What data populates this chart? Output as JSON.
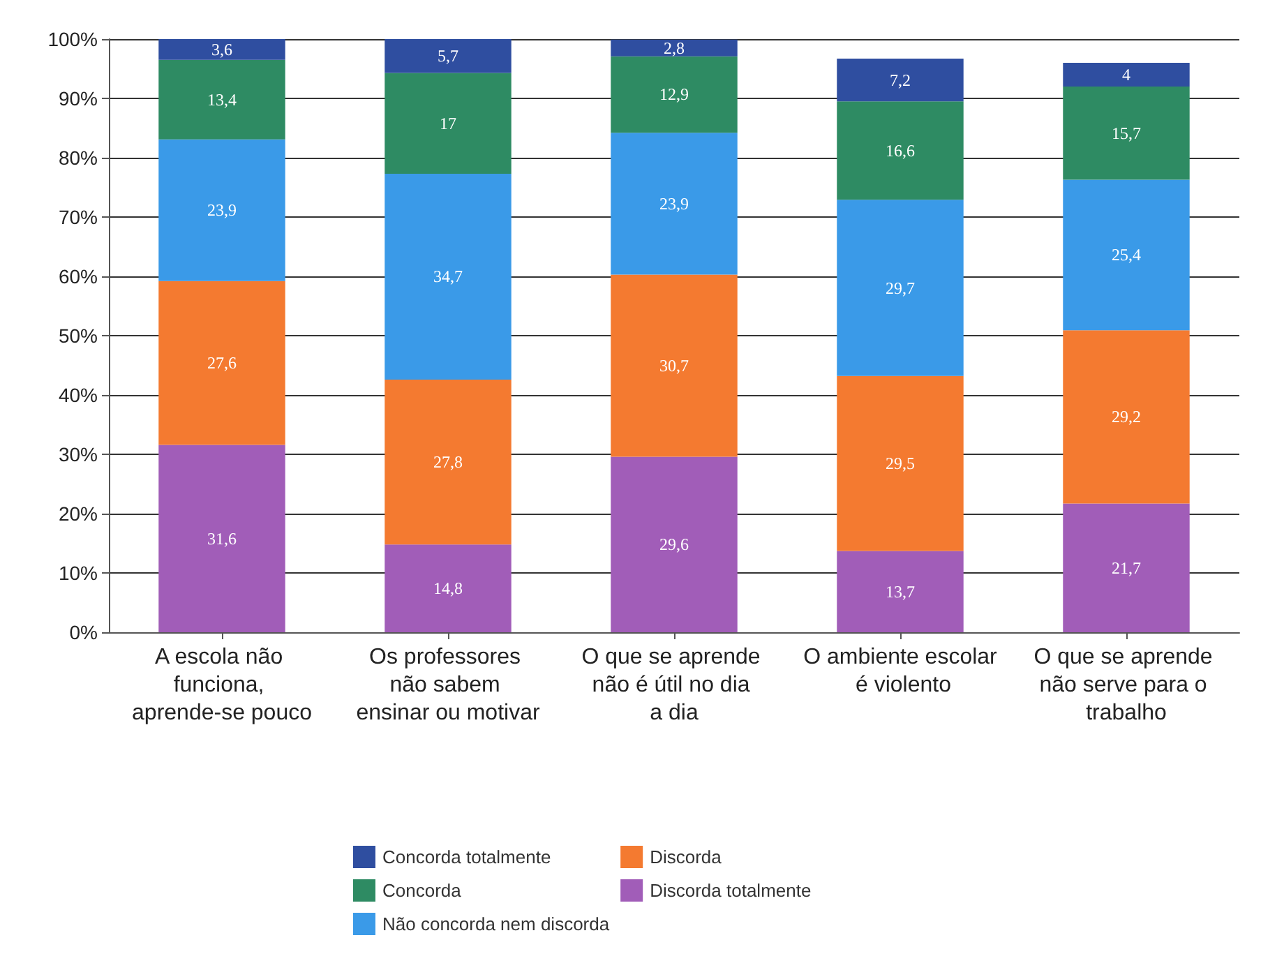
{
  "chart_data": {
    "type": "bar",
    "stacked": true,
    "categories": [
      "A escola não funciona, aprende-se pouco",
      "Os professores não sabem ensinar ou motivar",
      "O que se aprende não é útil no dia a dia",
      "O ambiente escolar é violento",
      "O que se aprende não serve para o trabalho"
    ],
    "series": [
      {
        "name": "Discorda totalmente",
        "color": "#a15db8",
        "values": [
          31.6,
          14.8,
          29.6,
          13.7,
          21.7
        ],
        "value_labels": [
          "31,6",
          "14,8",
          "29,6",
          "13,7",
          "21,7"
        ]
      },
      {
        "name": "Discorda",
        "color": "#f47a30",
        "values": [
          27.6,
          27.8,
          30.7,
          29.5,
          29.2
        ],
        "value_labels": [
          "27,6",
          "27,8",
          "30,7",
          "29,5",
          "29,2"
        ]
      },
      {
        "name": "Não concorda nem discorda",
        "color": "#3a9ae8",
        "values": [
          23.9,
          34.7,
          23.9,
          29.7,
          25.4
        ],
        "value_labels": [
          "23,9",
          "34,7",
          "23,9",
          "29,7",
          "25,4"
        ]
      },
      {
        "name": "Concorda",
        "color": "#2e8b63",
        "values": [
          13.4,
          17,
          12.9,
          16.6,
          15.7
        ],
        "value_labels": [
          "13,4",
          "17",
          "12,9",
          "16,6",
          "15,7"
        ]
      },
      {
        "name": "Concorda totalmente",
        "color": "#2f4ea0",
        "values": [
          3.6,
          5.7,
          2.8,
          7.2,
          4
        ],
        "value_labels": [
          "3,6",
          "5,7",
          "2,8",
          "7,2",
          "4"
        ]
      }
    ],
    "ylim": [
      0,
      100
    ],
    "yticks": [
      {
        "value": 0,
        "label": "0%"
      },
      {
        "value": 10,
        "label": "10%"
      },
      {
        "value": 20,
        "label": "20%"
      },
      {
        "value": 30,
        "label": "30%"
      },
      {
        "value": 40,
        "label": "40%"
      },
      {
        "value": 50,
        "label": "50%"
      },
      {
        "value": 60,
        "label": "60%"
      },
      {
        "value": 70,
        "label": "70%"
      },
      {
        "value": 80,
        "label": "80%"
      },
      {
        "value": 90,
        "label": "90%"
      },
      {
        "value": 100,
        "label": "100%"
      }
    ],
    "grid": "y",
    "legend": "bottom"
  }
}
